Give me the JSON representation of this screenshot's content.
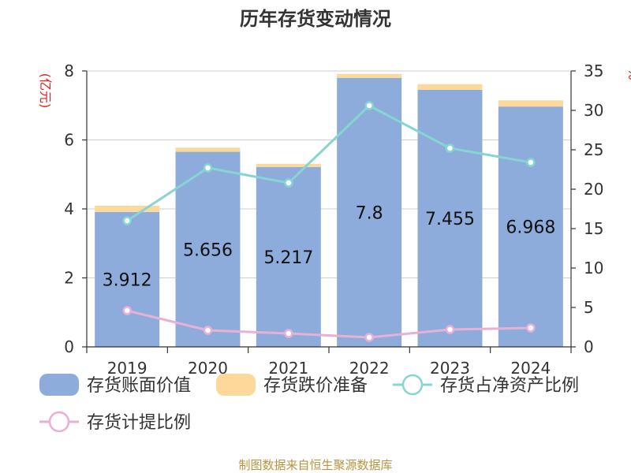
{
  "chart_data": {
    "type": "bar",
    "title": "历年存货变动情况",
    "categories": [
      "2019",
      "2020",
      "2021",
      "2022",
      "2023",
      "2024"
    ],
    "y_left": {
      "unit": "(亿元)",
      "range": [
        0,
        8
      ],
      "ticks": [
        0,
        2,
        4,
        6,
        8
      ]
    },
    "y_right": {
      "unit": "%",
      "range": [
        0,
        35
      ],
      "ticks": [
        0,
        5,
        10,
        15,
        20,
        25,
        30,
        35
      ]
    },
    "stack_series": [
      {
        "name": "存货账面价值",
        "color": "#8eacdb",
        "axis": "left",
        "values": [
          3.912,
          5.656,
          5.217,
          7.8,
          7.455,
          6.968
        ],
        "labels": [
          "3.912",
          "5.656",
          "5.217",
          "7.8",
          "7.455",
          "6.968"
        ]
      },
      {
        "name": "存货跌价准备",
        "color": "#fcd99a",
        "axis": "left",
        "values": [
          0.18,
          0.12,
          0.09,
          0.11,
          0.16,
          0.18
        ]
      }
    ],
    "line_series": [
      {
        "name": "存货占净资产比例",
        "color": "#86d5d2",
        "axis": "right",
        "values": [
          16.0,
          22.7,
          20.8,
          30.6,
          25.2,
          23.4
        ]
      },
      {
        "name": "存货计提比例",
        "color": "#e8b0d4",
        "axis": "right",
        "values": [
          4.6,
          2.1,
          1.7,
          1.2,
          2.2,
          2.4
        ]
      }
    ],
    "legend_position": "bottom",
    "grid": true
  },
  "source_note": "制图数据来自恒生聚源数据库"
}
